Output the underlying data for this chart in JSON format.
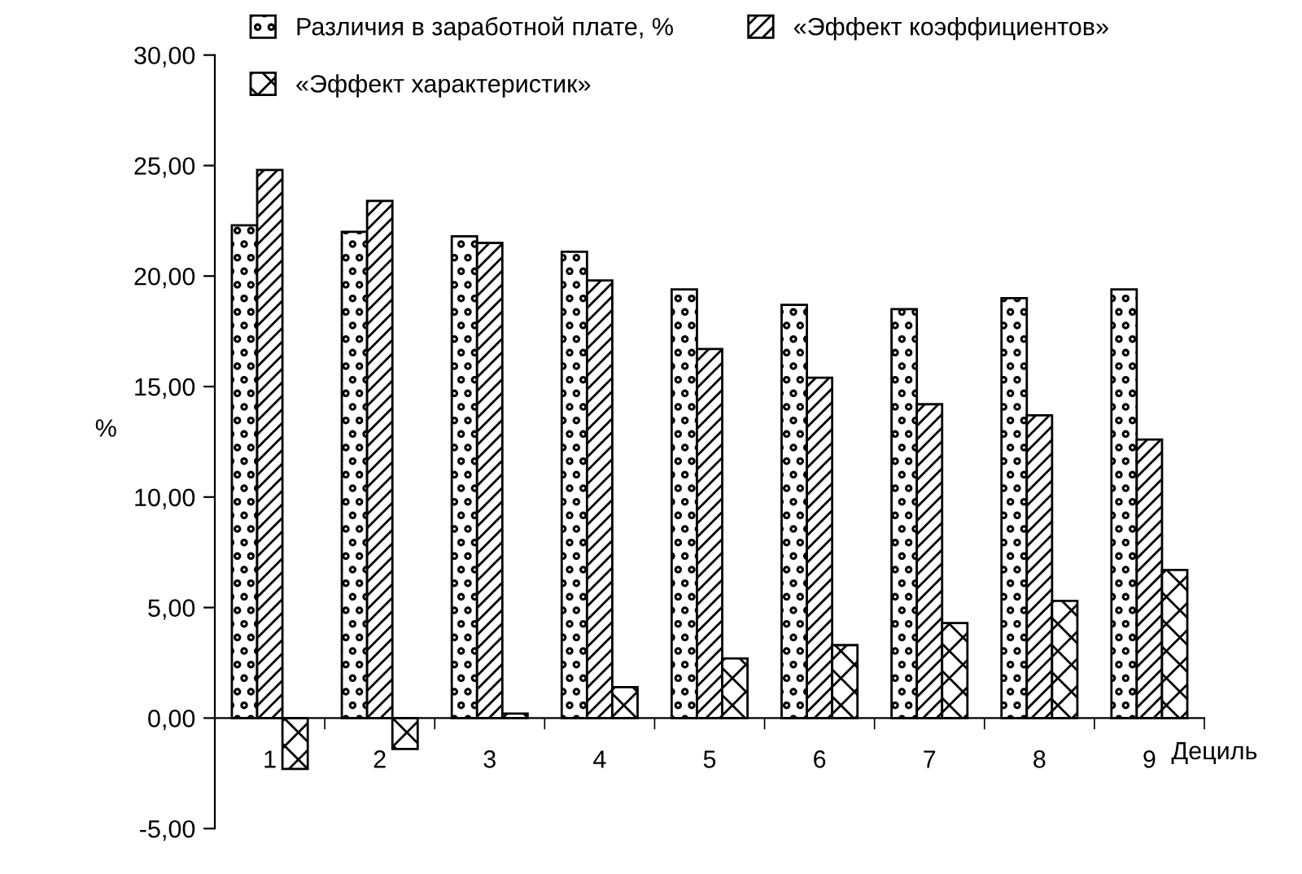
{
  "chart_data": {
    "type": "bar",
    "xlabel": "Дециль",
    "ylabel": "%",
    "categories": [
      "1",
      "2",
      "3",
      "4",
      "5",
      "6",
      "7",
      "8",
      "9"
    ],
    "series": [
      {
        "name": "Различия в заработной плате, %",
        "color": "#000000",
        "values": [
          22.3,
          22.0,
          21.8,
          21.1,
          19.4,
          18.7,
          18.5,
          19.0,
          19.4
        ]
      },
      {
        "name": "«Эффект коэффициентов»",
        "color": "#000000",
        "values": [
          24.8,
          23.4,
          21.5,
          19.8,
          16.7,
          15.4,
          14.2,
          13.7,
          12.6
        ]
      },
      {
        "name": "«Эффект характеристик»",
        "color": "#000000",
        "values": [
          -2.3,
          -1.4,
          0.2,
          1.4,
          2.7,
          3.3,
          4.3,
          5.3,
          6.7
        ]
      }
    ],
    "ylim": [
      -5,
      30
    ],
    "yticks": [
      {
        "value": -5,
        "label": "-5,00"
      },
      {
        "value": 0,
        "label": "0,00"
      },
      {
        "value": 5,
        "label": "5,00"
      },
      {
        "value": 10,
        "label": "10,00"
      },
      {
        "value": 15,
        "label": "15,00"
      },
      {
        "value": 20,
        "label": "20,00"
      },
      {
        "value": 25,
        "label": "25,00"
      },
      {
        "value": 30,
        "label": "30,00"
      }
    ],
    "grid": false,
    "legend": "top"
  }
}
